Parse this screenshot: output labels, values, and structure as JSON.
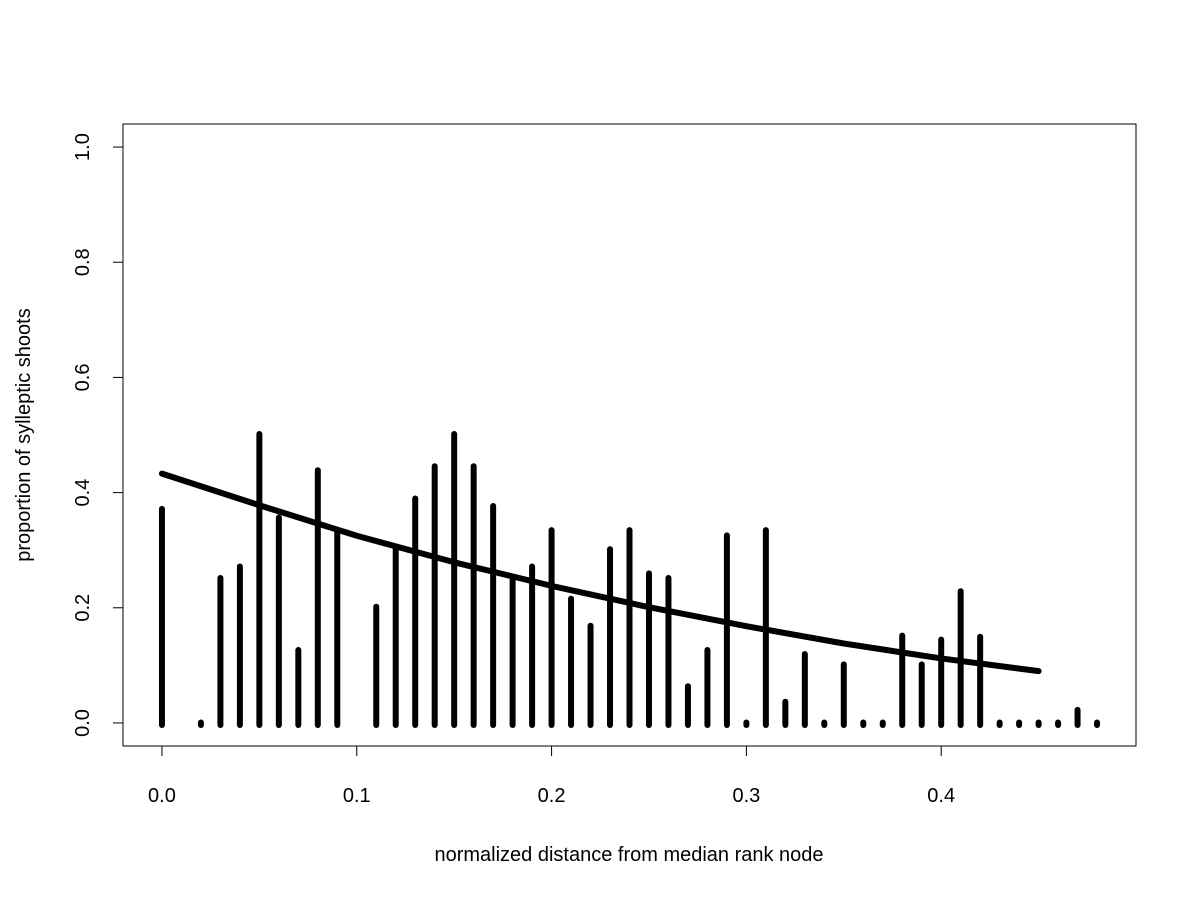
{
  "chart_data": {
    "type": "bar",
    "xlabel": "normalized distance from median rank node",
    "ylabel": "proportion of sylleptic shoots",
    "xlim": [
      -0.02,
      0.5
    ],
    "ylim": [
      -0.04,
      1.04
    ],
    "x_ticks": [
      0.0,
      0.1,
      0.2,
      0.3,
      0.4
    ],
    "x_tick_labels": [
      "0.0",
      "0.1",
      "0.2",
      "0.3",
      "0.4"
    ],
    "y_ticks": [
      0.0,
      0.2,
      0.4,
      0.6,
      0.8,
      1.0
    ],
    "y_tick_labels": [
      "0.0",
      "0.2",
      "0.4",
      "0.6",
      "0.8",
      "1.0"
    ],
    "grid": false,
    "series": [
      {
        "type": "bar",
        "x": [
          0.0,
          0.02,
          0.03,
          0.04,
          0.05,
          0.06,
          0.07,
          0.08,
          0.09,
          0.11,
          0.12,
          0.13,
          0.14,
          0.15,
          0.16,
          0.17,
          0.18,
          0.19,
          0.2,
          0.21,
          0.22,
          0.23,
          0.24,
          0.25,
          0.26,
          0.27,
          0.28,
          0.29,
          0.3,
          0.31,
          0.32,
          0.33,
          0.34,
          0.35,
          0.36,
          0.37,
          0.38,
          0.39,
          0.4,
          0.41,
          0.42,
          0.43,
          0.44,
          0.45,
          0.46,
          0.47,
          0.48
        ],
        "values": [
          0.37,
          0.0,
          0.25,
          0.27,
          0.5,
          0.355,
          0.125,
          0.437,
          0.333,
          0.2,
          0.3,
          0.388,
          0.444,
          0.5,
          0.444,
          0.375,
          0.25,
          0.27,
          0.333,
          0.214,
          0.167,
          0.3,
          0.333,
          0.258,
          0.25,
          0.062,
          0.125,
          0.324,
          0.0,
          0.333,
          0.035,
          0.118,
          0.0,
          0.1,
          0.0,
          0.0,
          0.15,
          0.1,
          0.143,
          0.227,
          0.148,
          0.0,
          0.0,
          0.0,
          0.0,
          0.021,
          0.0
        ]
      },
      {
        "type": "line",
        "x": [
          0.0,
          0.05,
          0.1,
          0.15,
          0.2,
          0.25,
          0.3,
          0.35,
          0.4,
          0.45
        ],
        "values": [
          0.433,
          0.378,
          0.325,
          0.279,
          0.238,
          0.201,
          0.168,
          0.138,
          0.112,
          0.09
        ]
      }
    ]
  }
}
